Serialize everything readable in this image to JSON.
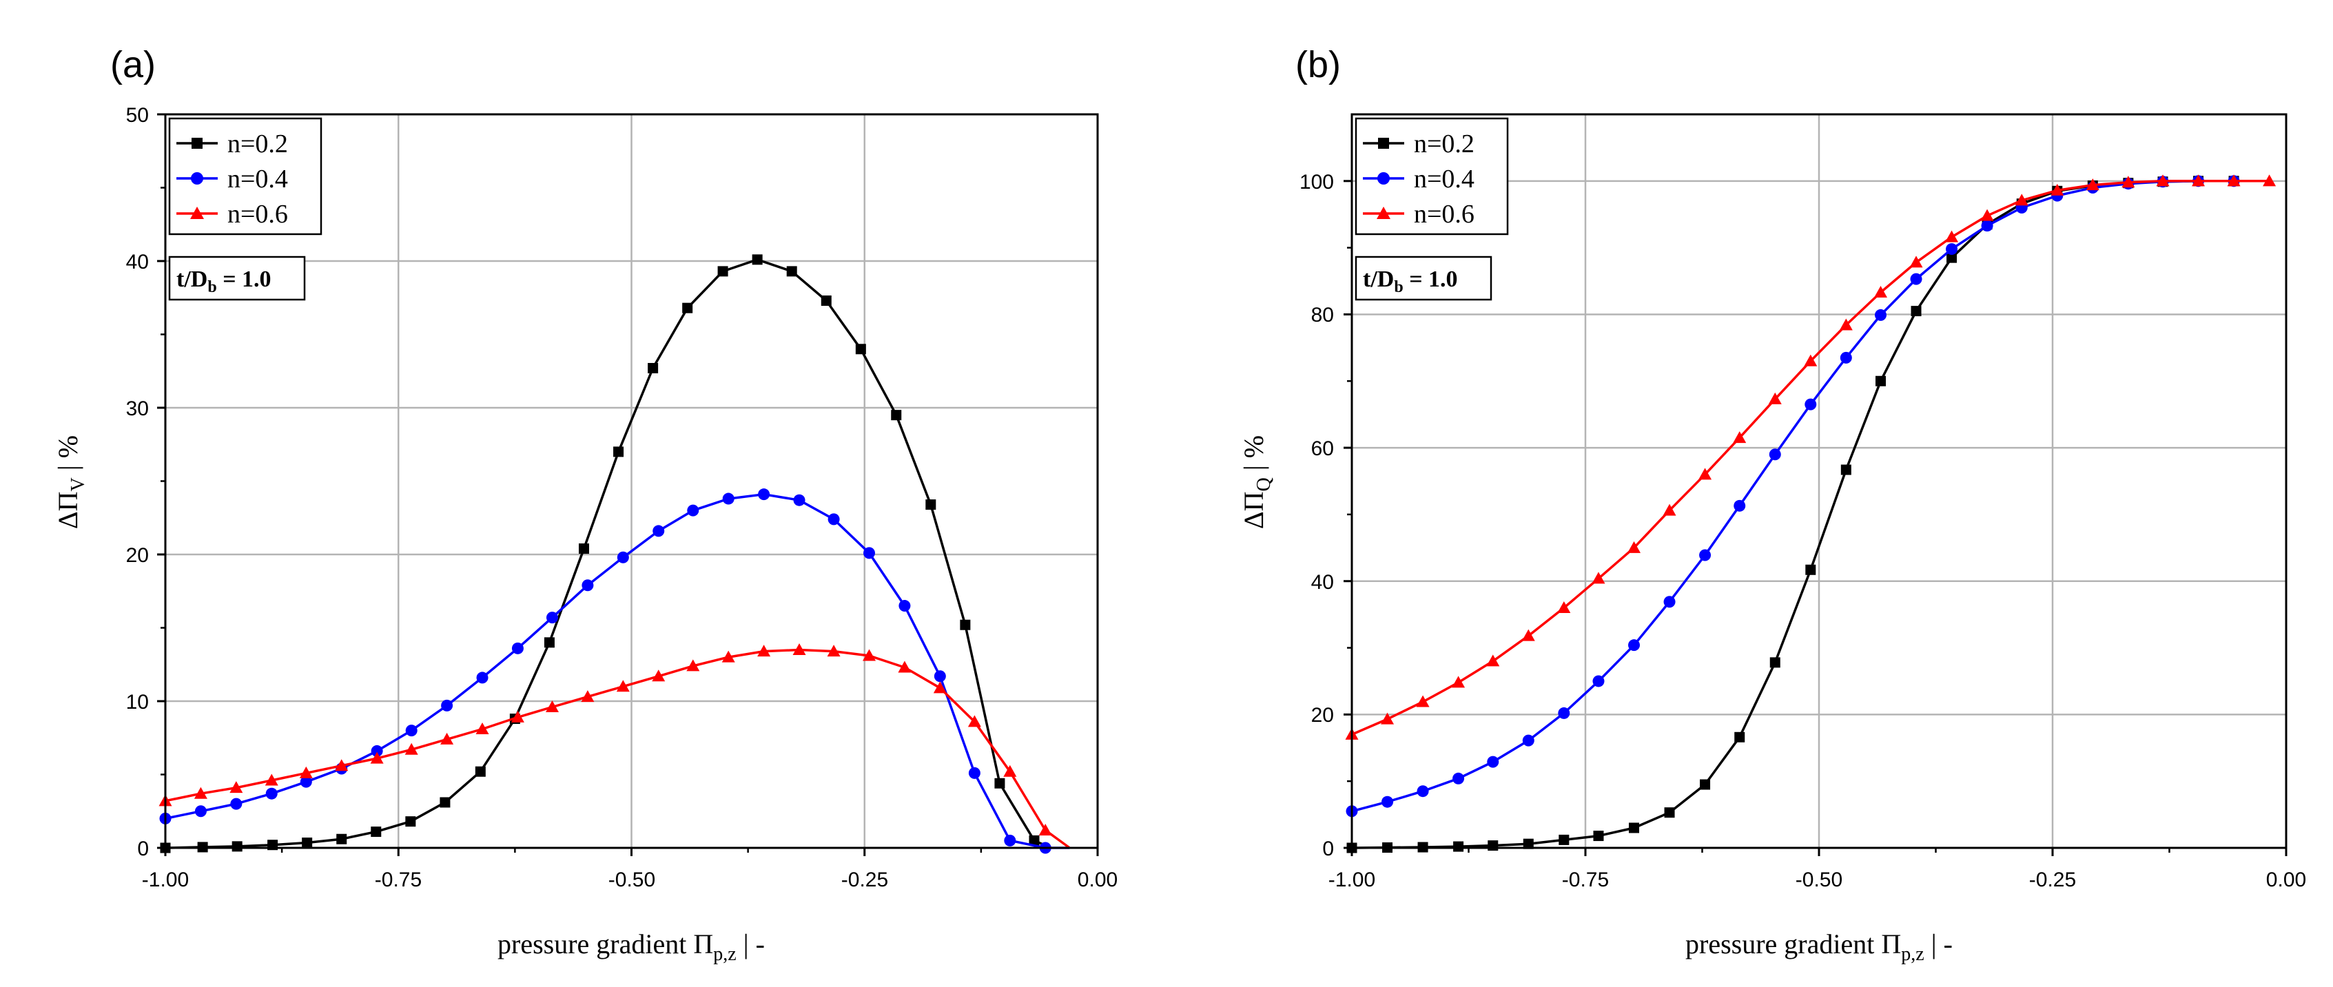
{
  "figure": {
    "panels": [
      {
        "label": "(a)",
        "y_axis_prefix": "ΔΠ",
        "y_axis_subscript": "V",
        "y_axis_unit": "  |  %",
        "x_axis_prefix": "pressure gradient Π",
        "x_axis_subscript": "p,z",
        "x_axis_unit": "  |  -",
        "annotation_prefix": "t/D",
        "annotation_subscript": "b",
        "annotation_value": " = 1.0",
        "x_tick_labels": [
          "-1.00",
          "-0.75",
          "-0.50",
          "-0.25",
          "0.00"
        ],
        "y_tick_labels": [
          "0",
          "10",
          "20",
          "30",
          "40",
          "50"
        ],
        "legend": [
          "n=0.2",
          "n=0.4",
          "n=0.6"
        ]
      },
      {
        "label": "(b)",
        "y_axis_prefix": "ΔΠ",
        "y_axis_subscript": "Q",
        "y_axis_unit": "  |  %",
        "x_axis_prefix": "pressure gradient Π",
        "x_axis_subscript": "p,z",
        "x_axis_unit": "  |  -",
        "annotation_prefix": "t/D",
        "annotation_subscript": "b",
        "annotation_value": " = 1.0",
        "x_tick_labels": [
          "-1.00",
          "-0.75",
          "-0.50",
          "-0.25",
          "0.00"
        ],
        "y_tick_labels": [
          "0",
          "20",
          "40",
          "60",
          "80",
          "100"
        ],
        "legend": [
          "n=0.2",
          "n=0.4",
          "n=0.6"
        ]
      }
    ]
  },
  "chart_data": [
    {
      "type": "line",
      "title": "(a)",
      "xlabel": "pressure gradient Π_p,z | -",
      "ylabel": "ΔΠ_V | %",
      "xlim": [
        -1.0,
        0.0
      ],
      "ylim": [
        0,
        50
      ],
      "xticks": [
        -1.0,
        -0.75,
        -0.5,
        -0.25,
        0.0
      ],
      "yticks": [
        0,
        10,
        20,
        30,
        40,
        50
      ],
      "grid": true,
      "legend_position": "top-left",
      "annotation": "t/D_b = 1.0",
      "series": [
        {
          "name": "n=0.2",
          "color": "#000000",
          "marker": "square",
          "x": [
            -1.0,
            -0.96,
            -0.923,
            -0.885,
            -0.848,
            -0.811,
            -0.774,
            -0.737,
            -0.7,
            -0.662,
            -0.625,
            -0.588,
            -0.551,
            -0.514,
            -0.477,
            -0.44,
            -0.402,
            -0.365,
            -0.328,
            -0.291,
            -0.254,
            -0.216,
            -0.179,
            -0.142,
            -0.105,
            -0.068,
            -0.05
          ],
          "y": [
            0.0,
            0.05,
            0.1,
            0.2,
            0.35,
            0.6,
            1.1,
            1.8,
            3.1,
            5.2,
            8.8,
            14.0,
            20.4,
            27.0,
            32.7,
            36.8,
            39.3,
            40.1,
            39.3,
            37.3,
            34.0,
            29.5,
            23.4,
            15.2,
            4.4,
            0.5,
            0.0
          ],
          "marker_x": [
            -1.0,
            -0.96,
            -0.923,
            -0.885,
            -0.848,
            -0.811,
            -0.774,
            -0.737,
            -0.7,
            -0.662,
            -0.625,
            -0.588,
            -0.551,
            -0.514,
            -0.477,
            -0.44,
            -0.402,
            -0.365,
            -0.328,
            -0.291,
            -0.254,
            -0.216,
            -0.179,
            -0.142,
            -0.105,
            -0.068
          ],
          "marker_y": [
            0.0,
            0.05,
            0.1,
            0.2,
            0.35,
            0.6,
            1.1,
            1.8,
            3.1,
            5.2,
            8.8,
            14.0,
            20.4,
            27.0,
            32.7,
            36.8,
            39.3,
            40.1,
            39.3,
            37.3,
            34.0,
            29.5,
            23.4,
            15.2,
            4.4,
            0.5
          ]
        },
        {
          "name": "n=0.4",
          "color": "#0000ff",
          "marker": "circle",
          "x": [
            -1.0,
            -0.962,
            -0.924,
            -0.886,
            -0.849,
            -0.811,
            -0.773,
            -0.736,
            -0.698,
            -0.66,
            -0.622,
            -0.585,
            -0.547,
            -0.509,
            -0.471,
            -0.434,
            -0.396,
            -0.358,
            -0.32,
            -0.283,
            -0.245,
            -0.207,
            -0.169,
            -0.132,
            -0.094,
            -0.056,
            -0.03
          ],
          "y": [
            2.0,
            2.5,
            3.0,
            3.7,
            4.5,
            5.4,
            6.6,
            8.0,
            9.7,
            11.6,
            13.6,
            15.7,
            17.9,
            19.8,
            21.6,
            23.0,
            23.8,
            24.1,
            23.7,
            22.4,
            20.1,
            16.5,
            11.7,
            5.1,
            0.5,
            0.0,
            0.0
          ],
          "marker_x": [
            -1.0,
            -0.962,
            -0.924,
            -0.886,
            -0.849,
            -0.811,
            -0.773,
            -0.736,
            -0.698,
            -0.66,
            -0.622,
            -0.585,
            -0.547,
            -0.509,
            -0.471,
            -0.434,
            -0.396,
            -0.358,
            -0.32,
            -0.283,
            -0.245,
            -0.207,
            -0.169,
            -0.132,
            -0.094,
            -0.056
          ],
          "marker_y": [
            2.0,
            2.5,
            3.0,
            3.7,
            4.5,
            5.4,
            6.6,
            8.0,
            9.7,
            11.6,
            13.6,
            15.7,
            17.9,
            19.8,
            21.6,
            23.0,
            23.8,
            24.1,
            23.7,
            22.4,
            20.1,
            16.5,
            11.7,
            5.1,
            0.5,
            0.0
          ]
        },
        {
          "name": "n=0.6",
          "color": "#ff0000",
          "marker": "triangle",
          "x": [
            -1.0,
            -0.962,
            -0.924,
            -0.886,
            -0.849,
            -0.811,
            -0.773,
            -0.736,
            -0.698,
            -0.66,
            -0.622,
            -0.585,
            -0.547,
            -0.509,
            -0.471,
            -0.434,
            -0.396,
            -0.358,
            -0.32,
            -0.283,
            -0.245,
            -0.207,
            -0.169,
            -0.132,
            -0.094,
            -0.056,
            -0.03
          ],
          "y": [
            3.2,
            3.7,
            4.1,
            4.6,
            5.1,
            5.6,
            6.1,
            6.7,
            7.4,
            8.1,
            8.9,
            9.6,
            10.3,
            11.0,
            11.7,
            12.4,
            13.0,
            13.4,
            13.5,
            13.4,
            13.1,
            12.3,
            10.9,
            8.6,
            5.2,
            1.2,
            0.0
          ],
          "marker_x": [
            -1.0,
            -0.962,
            -0.924,
            -0.886,
            -0.849,
            -0.811,
            -0.773,
            -0.736,
            -0.698,
            -0.66,
            -0.622,
            -0.585,
            -0.547,
            -0.509,
            -0.471,
            -0.434,
            -0.396,
            -0.358,
            -0.32,
            -0.283,
            -0.245,
            -0.207,
            -0.169,
            -0.132,
            -0.094,
            -0.056
          ],
          "marker_y": [
            3.2,
            3.7,
            4.1,
            4.6,
            5.1,
            5.6,
            6.1,
            6.7,
            7.4,
            8.1,
            8.9,
            9.6,
            10.3,
            11.0,
            11.7,
            12.4,
            13.0,
            13.4,
            13.5,
            13.4,
            13.1,
            12.3,
            10.9,
            8.6,
            5.2,
            1.2
          ]
        }
      ]
    },
    {
      "type": "line",
      "title": "(b)",
      "xlabel": "pressure gradient Π_p,z | -",
      "ylabel": "ΔΠ_Q | %",
      "xlim": [
        -1.0,
        0.0
      ],
      "ylim": [
        0,
        110
      ],
      "xticks": [
        -1.0,
        -0.75,
        -0.5,
        -0.25,
        0.0
      ],
      "yticks": [
        0,
        20,
        40,
        60,
        80,
        100
      ],
      "grid": true,
      "legend_position": "top-left",
      "annotation": "t/D_b = 1.0",
      "series": [
        {
          "name": "n=0.2",
          "color": "#000000",
          "marker": "square",
          "x": [
            -1.0,
            -0.962,
            -0.924,
            -0.886,
            -0.849,
            -0.811,
            -0.773,
            -0.736,
            -0.698,
            -0.66,
            -0.622,
            -0.585,
            -0.547,
            -0.509,
            -0.471,
            -0.434,
            -0.396,
            -0.358,
            -0.32,
            -0.283,
            -0.245,
            -0.207,
            -0.169,
            -0.132,
            -0.094,
            -0.056,
            -0.018
          ],
          "y": [
            0.0,
            0.05,
            0.1,
            0.2,
            0.35,
            0.6,
            1.2,
            1.8,
            3.0,
            5.3,
            9.5,
            16.6,
            27.8,
            41.7,
            56.7,
            70.0,
            80.5,
            88.5,
            93.5,
            96.6,
            98.5,
            99.3,
            99.7,
            99.9,
            100.0,
            100.0,
            100.0
          ],
          "marker_x": [
            -1.0,
            -0.962,
            -0.924,
            -0.886,
            -0.849,
            -0.811,
            -0.773,
            -0.736,
            -0.698,
            -0.66,
            -0.622,
            -0.585,
            -0.547,
            -0.509,
            -0.471,
            -0.434,
            -0.396,
            -0.358,
            -0.32,
            -0.283,
            -0.245,
            -0.207,
            -0.169,
            -0.132,
            -0.094,
            -0.056
          ],
          "marker_y": [
            0.0,
            0.05,
            0.1,
            0.2,
            0.35,
            0.6,
            1.2,
            1.8,
            3.0,
            5.3,
            9.5,
            16.6,
            27.8,
            41.7,
            56.7,
            70.0,
            80.5,
            88.5,
            93.5,
            96.6,
            98.5,
            99.3,
            99.7,
            99.9,
            100.0,
            100.0
          ]
        },
        {
          "name": "n=0.4",
          "color": "#0000ff",
          "marker": "circle",
          "x": [
            -1.0,
            -0.962,
            -0.924,
            -0.886,
            -0.849,
            -0.811,
            -0.773,
            -0.736,
            -0.698,
            -0.66,
            -0.622,
            -0.585,
            -0.547,
            -0.509,
            -0.471,
            -0.434,
            -0.396,
            -0.358,
            -0.32,
            -0.283,
            -0.245,
            -0.207,
            -0.169,
            -0.132,
            -0.094,
            -0.056,
            -0.018
          ],
          "y": [
            5.5,
            6.9,
            8.5,
            10.4,
            12.9,
            16.1,
            20.2,
            25.0,
            30.4,
            36.9,
            43.9,
            51.3,
            59.0,
            66.5,
            73.5,
            79.9,
            85.3,
            89.8,
            93.3,
            96.0,
            97.8,
            99.0,
            99.6,
            99.9,
            100.0,
            100.0,
            100.0
          ],
          "marker_x": [
            -1.0,
            -0.962,
            -0.924,
            -0.886,
            -0.849,
            -0.811,
            -0.773,
            -0.736,
            -0.698,
            -0.66,
            -0.622,
            -0.585,
            -0.547,
            -0.509,
            -0.471,
            -0.434,
            -0.396,
            -0.358,
            -0.32,
            -0.283,
            -0.245,
            -0.207,
            -0.169,
            -0.132,
            -0.094,
            -0.056
          ],
          "marker_y": [
            5.5,
            6.9,
            8.5,
            10.4,
            12.9,
            16.1,
            20.2,
            25.0,
            30.4,
            36.9,
            43.9,
            51.3,
            59.0,
            66.5,
            73.5,
            79.9,
            85.3,
            89.8,
            93.3,
            96.0,
            97.8,
            99.0,
            99.6,
            99.9,
            100.0,
            100.0
          ]
        },
        {
          "name": "n=0.6",
          "color": "#ff0000",
          "marker": "triangle",
          "x": [
            -1.0,
            -0.962,
            -0.924,
            -0.886,
            -0.849,
            -0.811,
            -0.773,
            -0.736,
            -0.698,
            -0.66,
            -0.622,
            -0.585,
            -0.547,
            -0.509,
            -0.471,
            -0.434,
            -0.396,
            -0.358,
            -0.32,
            -0.283,
            -0.245,
            -0.207,
            -0.169,
            -0.132,
            -0.094,
            -0.056,
            -0.018
          ],
          "y": [
            17.0,
            19.3,
            21.9,
            24.8,
            28.0,
            31.8,
            36.0,
            40.4,
            45.0,
            50.6,
            56.0,
            61.5,
            67.3,
            73.0,
            78.4,
            83.3,
            87.8,
            91.6,
            94.8,
            97.1,
            98.6,
            99.4,
            99.8,
            100.0,
            100.0,
            100.0,
            100.0
          ],
          "marker_x": [
            -1.0,
            -0.962,
            -0.924,
            -0.886,
            -0.849,
            -0.811,
            -0.773,
            -0.736,
            -0.698,
            -0.66,
            -0.622,
            -0.585,
            -0.547,
            -0.509,
            -0.471,
            -0.434,
            -0.396,
            -0.358,
            -0.32,
            -0.283,
            -0.245,
            -0.207,
            -0.169,
            -0.132,
            -0.094,
            -0.056,
            -0.018
          ],
          "marker_y": [
            17.0,
            19.3,
            21.9,
            24.8,
            28.0,
            31.8,
            36.0,
            40.4,
            45.0,
            50.6,
            56.0,
            61.5,
            67.3,
            73.0,
            78.4,
            83.3,
            87.8,
            91.6,
            94.8,
            97.1,
            98.6,
            99.4,
            99.8,
            100.0,
            100.0,
            100.0,
            100.0
          ]
        }
      ]
    }
  ]
}
